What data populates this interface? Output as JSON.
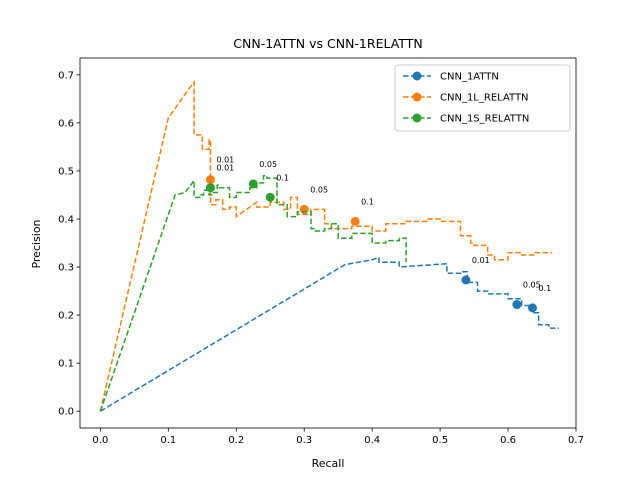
{
  "chart_data": {
    "type": "line",
    "title": "CNN-1ATTN vs CNN-1RELATTN",
    "xlabel": "Recall",
    "ylabel": "Precision",
    "xlim": [
      -0.03,
      0.7
    ],
    "ylim": [
      -0.035,
      0.735
    ],
    "xticks": [
      0.0,
      0.1,
      0.2,
      0.3,
      0.4,
      0.5,
      0.6,
      0.7
    ],
    "yticks": [
      0.0,
      0.1,
      0.2,
      0.3,
      0.4,
      0.5,
      0.6,
      0.7
    ],
    "tick_labels_x": [
      "0.0",
      "0.1",
      "0.2",
      "0.3",
      "0.4",
      "0.5",
      "0.6",
      "0.7"
    ],
    "tick_labels_y": [
      "0.0",
      "0.1",
      "0.2",
      "0.3",
      "0.4",
      "0.5",
      "0.6",
      "0.7"
    ],
    "grid": false,
    "legend_position": "top-right",
    "series": [
      {
        "name": "CNN_1ATTN",
        "color": "#1f77b4",
        "x": [
          0.0,
          0.36,
          0.4,
          0.41,
          0.41,
          0.44,
          0.44,
          0.51,
          0.51,
          0.53,
          0.53,
          0.54,
          0.54,
          0.555,
          0.555,
          0.57,
          0.57,
          0.6,
          0.6,
          0.62,
          0.62,
          0.635,
          0.635,
          0.645,
          0.645,
          0.66,
          0.66,
          0.675
        ],
        "y": [
          0.0,
          0.305,
          0.315,
          0.32,
          0.31,
          0.31,
          0.3,
          0.307,
          0.287,
          0.287,
          0.29,
          0.29,
          0.268,
          0.268,
          0.25,
          0.25,
          0.244,
          0.244,
          0.234,
          0.234,
          0.22,
          0.22,
          0.205,
          0.205,
          0.18,
          0.18,
          0.173,
          0.173
        ],
        "markers": [
          {
            "x": 0.538,
            "y": 0.273,
            "label": "0.01"
          },
          {
            "x": 0.613,
            "y": 0.222,
            "label": "0.05"
          },
          {
            "x": 0.636,
            "y": 0.215,
            "label": "0.1"
          }
        ]
      },
      {
        "name": "CNN_1L_RELATTN",
        "color": "#ff7f0e",
        "x": [
          0.0,
          0.1,
          0.135,
          0.138,
          0.138,
          0.15,
          0.15,
          0.16,
          0.16,
          0.162,
          0.162,
          0.17,
          0.17,
          0.18,
          0.18,
          0.19,
          0.19,
          0.2,
          0.2,
          0.23,
          0.23,
          0.25,
          0.25,
          0.27,
          0.27,
          0.28,
          0.28,
          0.29,
          0.29,
          0.31,
          0.31,
          0.33,
          0.33,
          0.34,
          0.34,
          0.37,
          0.37,
          0.4,
          0.4,
          0.42,
          0.42,
          0.45,
          0.45,
          0.48,
          0.48,
          0.5,
          0.5,
          0.53,
          0.53,
          0.545,
          0.545,
          0.55,
          0.55,
          0.57,
          0.57,
          0.58,
          0.58,
          0.6,
          0.6,
          0.62,
          0.62,
          0.64,
          0.64,
          0.665
        ],
        "y": [
          0.0,
          0.61,
          0.68,
          0.685,
          0.575,
          0.575,
          0.545,
          0.545,
          0.565,
          0.565,
          0.43,
          0.43,
          0.44,
          0.44,
          0.42,
          0.42,
          0.425,
          0.425,
          0.405,
          0.435,
          0.425,
          0.425,
          0.435,
          0.435,
          0.42,
          0.42,
          0.445,
          0.445,
          0.41,
          0.41,
          0.42,
          0.42,
          0.39,
          0.39,
          0.38,
          0.38,
          0.385,
          0.385,
          0.375,
          0.375,
          0.39,
          0.39,
          0.395,
          0.395,
          0.4,
          0.4,
          0.395,
          0.395,
          0.365,
          0.365,
          0.35,
          0.35,
          0.345,
          0.345,
          0.325,
          0.325,
          0.315,
          0.315,
          0.33,
          0.33,
          0.325,
          0.325,
          0.33,
          0.33
        ],
        "markers": [
          {
            "x": 0.162,
            "y": 0.482,
            "label": "0.01"
          },
          {
            "x": 0.3,
            "y": 0.42,
            "label": "0.05"
          },
          {
            "x": 0.375,
            "y": 0.395,
            "label": "0.1"
          }
        ]
      },
      {
        "name": "CNN_1S_RELATTN",
        "color": "#2ca02c",
        "x": [
          0.0,
          0.11,
          0.125,
          0.138,
          0.138,
          0.148,
          0.148,
          0.152,
          0.152,
          0.16,
          0.16,
          0.165,
          0.165,
          0.172,
          0.172,
          0.175,
          0.175,
          0.19,
          0.19,
          0.2,
          0.2,
          0.22,
          0.22,
          0.23,
          0.23,
          0.24,
          0.24,
          0.245,
          0.245,
          0.26,
          0.26,
          0.275,
          0.275,
          0.29,
          0.29,
          0.31,
          0.31,
          0.315,
          0.315,
          0.33,
          0.33,
          0.34,
          0.34,
          0.35,
          0.35,
          0.37,
          0.37,
          0.4,
          0.4,
          0.42,
          0.42,
          0.44,
          0.44,
          0.45,
          0.45
        ],
        "y": [
          0.0,
          0.45,
          0.455,
          0.48,
          0.445,
          0.445,
          0.45,
          0.45,
          0.46,
          0.46,
          0.45,
          0.45,
          0.455,
          0.455,
          0.47,
          0.47,
          0.465,
          0.465,
          0.445,
          0.445,
          0.455,
          0.455,
          0.465,
          0.465,
          0.475,
          0.475,
          0.49,
          0.49,
          0.485,
          0.485,
          0.43,
          0.43,
          0.405,
          0.405,
          0.415,
          0.415,
          0.38,
          0.38,
          0.375,
          0.375,
          0.38,
          0.38,
          0.39,
          0.39,
          0.36,
          0.36,
          0.37,
          0.37,
          0.35,
          0.35,
          0.355,
          0.355,
          0.36,
          0.36,
          0.31
        ],
        "markers": [
          {
            "x": 0.162,
            "y": 0.465,
            "label": "0.01"
          },
          {
            "x": 0.225,
            "y": 0.473,
            "label": "0.05"
          },
          {
            "x": 0.25,
            "y": 0.445,
            "label": "0.1"
          }
        ]
      }
    ]
  }
}
